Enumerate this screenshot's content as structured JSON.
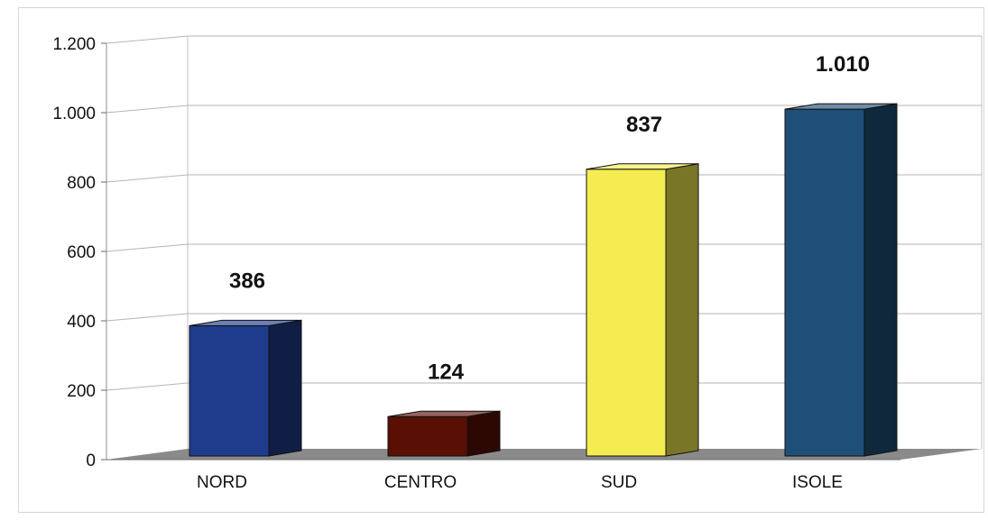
{
  "chart_data": {
    "type": "bar",
    "categories": [
      "NORD",
      "CENTRO",
      "SUD",
      "ISOLE"
    ],
    "values": [
      386,
      124,
      837,
      1010
    ],
    "data_labels": [
      "386",
      "124",
      "837",
      "1.010"
    ],
    "ylim": [
      0,
      1200
    ],
    "y_ticks": [
      0,
      200,
      400,
      600,
      800,
      1000,
      1200
    ],
    "y_tick_labels": [
      "0",
      "200",
      "400",
      "600",
      "800",
      "1.000",
      "1.200"
    ],
    "grid": true,
    "legend": "none",
    "style": "3d",
    "colors": [
      "#1f3c8c",
      "#5a0f05",
      "#f4ec50",
      "#1e4f78"
    ],
    "title": "",
    "xlabel": "",
    "ylabel": ""
  }
}
